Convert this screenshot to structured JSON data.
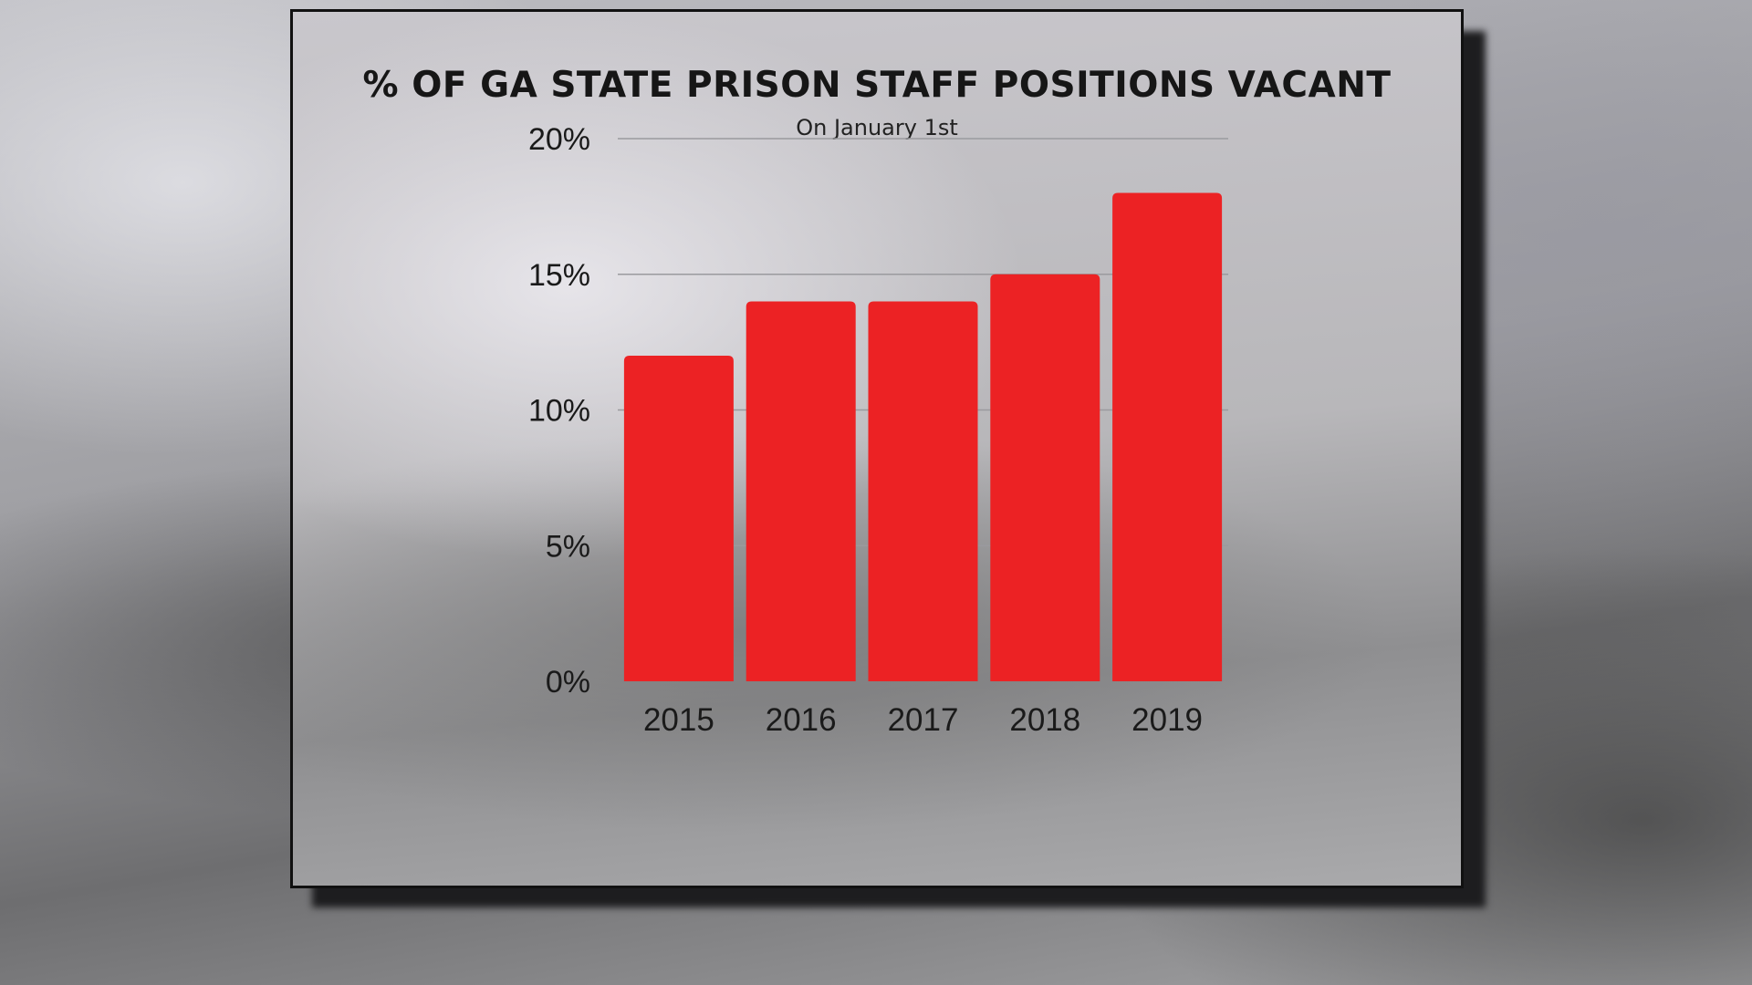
{
  "chart_data": {
    "type": "bar",
    "title": "% OF GA STATE PRISON STAFF POSITIONS VACANT",
    "subtitle": "On January 1st",
    "categories": [
      "2015",
      "2016",
      "2017",
      "2018",
      "2019"
    ],
    "values": [
      12,
      14,
      14,
      15,
      18
    ],
    "unit": "%",
    "ylim": [
      0,
      20
    ],
    "yticks": [
      "0%",
      "5%",
      "10%",
      "15%",
      "20%"
    ],
    "grid": true,
    "bar_color": "#ec2224",
    "xlabel": "",
    "ylabel": ""
  }
}
